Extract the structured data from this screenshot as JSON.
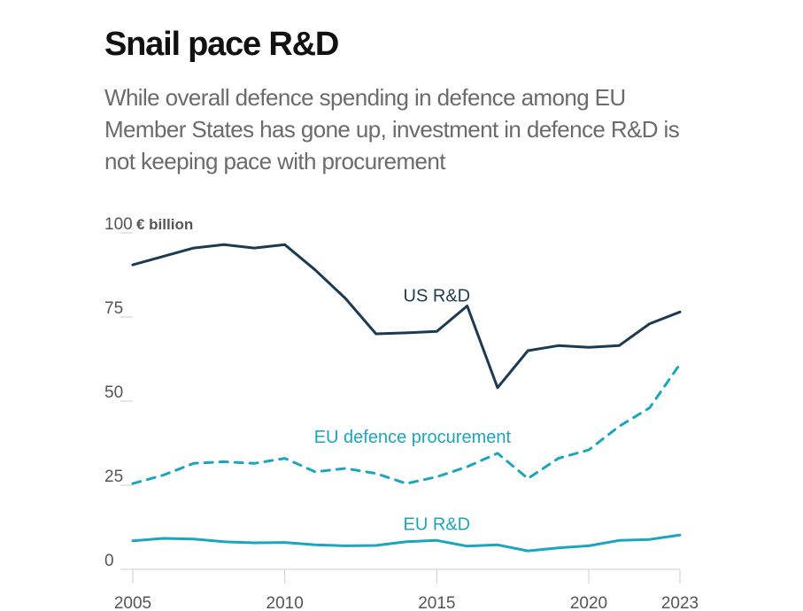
{
  "header": {
    "title": "Snail pace R&D",
    "subtitle": "While overall defence spending in defence among EU Member States has gone up, investment in defence R&D is not keeping pace with procurement"
  },
  "colors": {
    "us_rd": "#1c3a52",
    "eu_procurement": "#1ca6bd",
    "eu_rd": "#1ca6bd",
    "axis_text": "#555555",
    "gridline": "#cccccc"
  },
  "chart_data": {
    "type": "line",
    "title": "Snail pace R&D",
    "ylabel": "€ billion",
    "xlabel": "",
    "x": [
      2005,
      2006,
      2007,
      2008,
      2009,
      2010,
      2011,
      2012,
      2013,
      2014,
      2015,
      2016,
      2017,
      2018,
      2019,
      2020,
      2021,
      2022,
      2023
    ],
    "xticks": [
      "2005",
      "2010",
      "2015",
      "2020",
      "2023"
    ],
    "yticks": [
      0,
      25,
      50,
      75,
      100
    ],
    "ytick_labels": [
      "0",
      "25",
      "50",
      "75",
      "100"
    ],
    "ylim": [
      0,
      100
    ],
    "grid": false,
    "series": [
      {
        "name": "US R&D",
        "label": "US R&D",
        "style": "solid",
        "values": [
          90.5,
          93,
          95.5,
          96.5,
          95.5,
          96.5,
          89,
          80.5,
          70,
          70.3,
          70.7,
          78.3,
          54,
          65,
          66.5,
          66,
          66.5,
          73,
          76.5
        ]
      },
      {
        "name": "EU defence procurement",
        "label": "EU defence procurement",
        "style": "dashed",
        "values": [
          25.5,
          28,
          31.5,
          32,
          31.5,
          33,
          29,
          30,
          28.5,
          25.5,
          27.5,
          30.5,
          34.5,
          27,
          33,
          35.5,
          42.5,
          48,
          61
        ]
      },
      {
        "name": "EU R&D",
        "label": "EU R&D",
        "style": "solid",
        "values": [
          8.5,
          9.2,
          9,
          8.2,
          7.9,
          8,
          7.3,
          7,
          7.1,
          8.2,
          8.6,
          6.9,
          7.3,
          5.5,
          6.4,
          7,
          8.6,
          8.9,
          10.2
        ]
      }
    ]
  }
}
